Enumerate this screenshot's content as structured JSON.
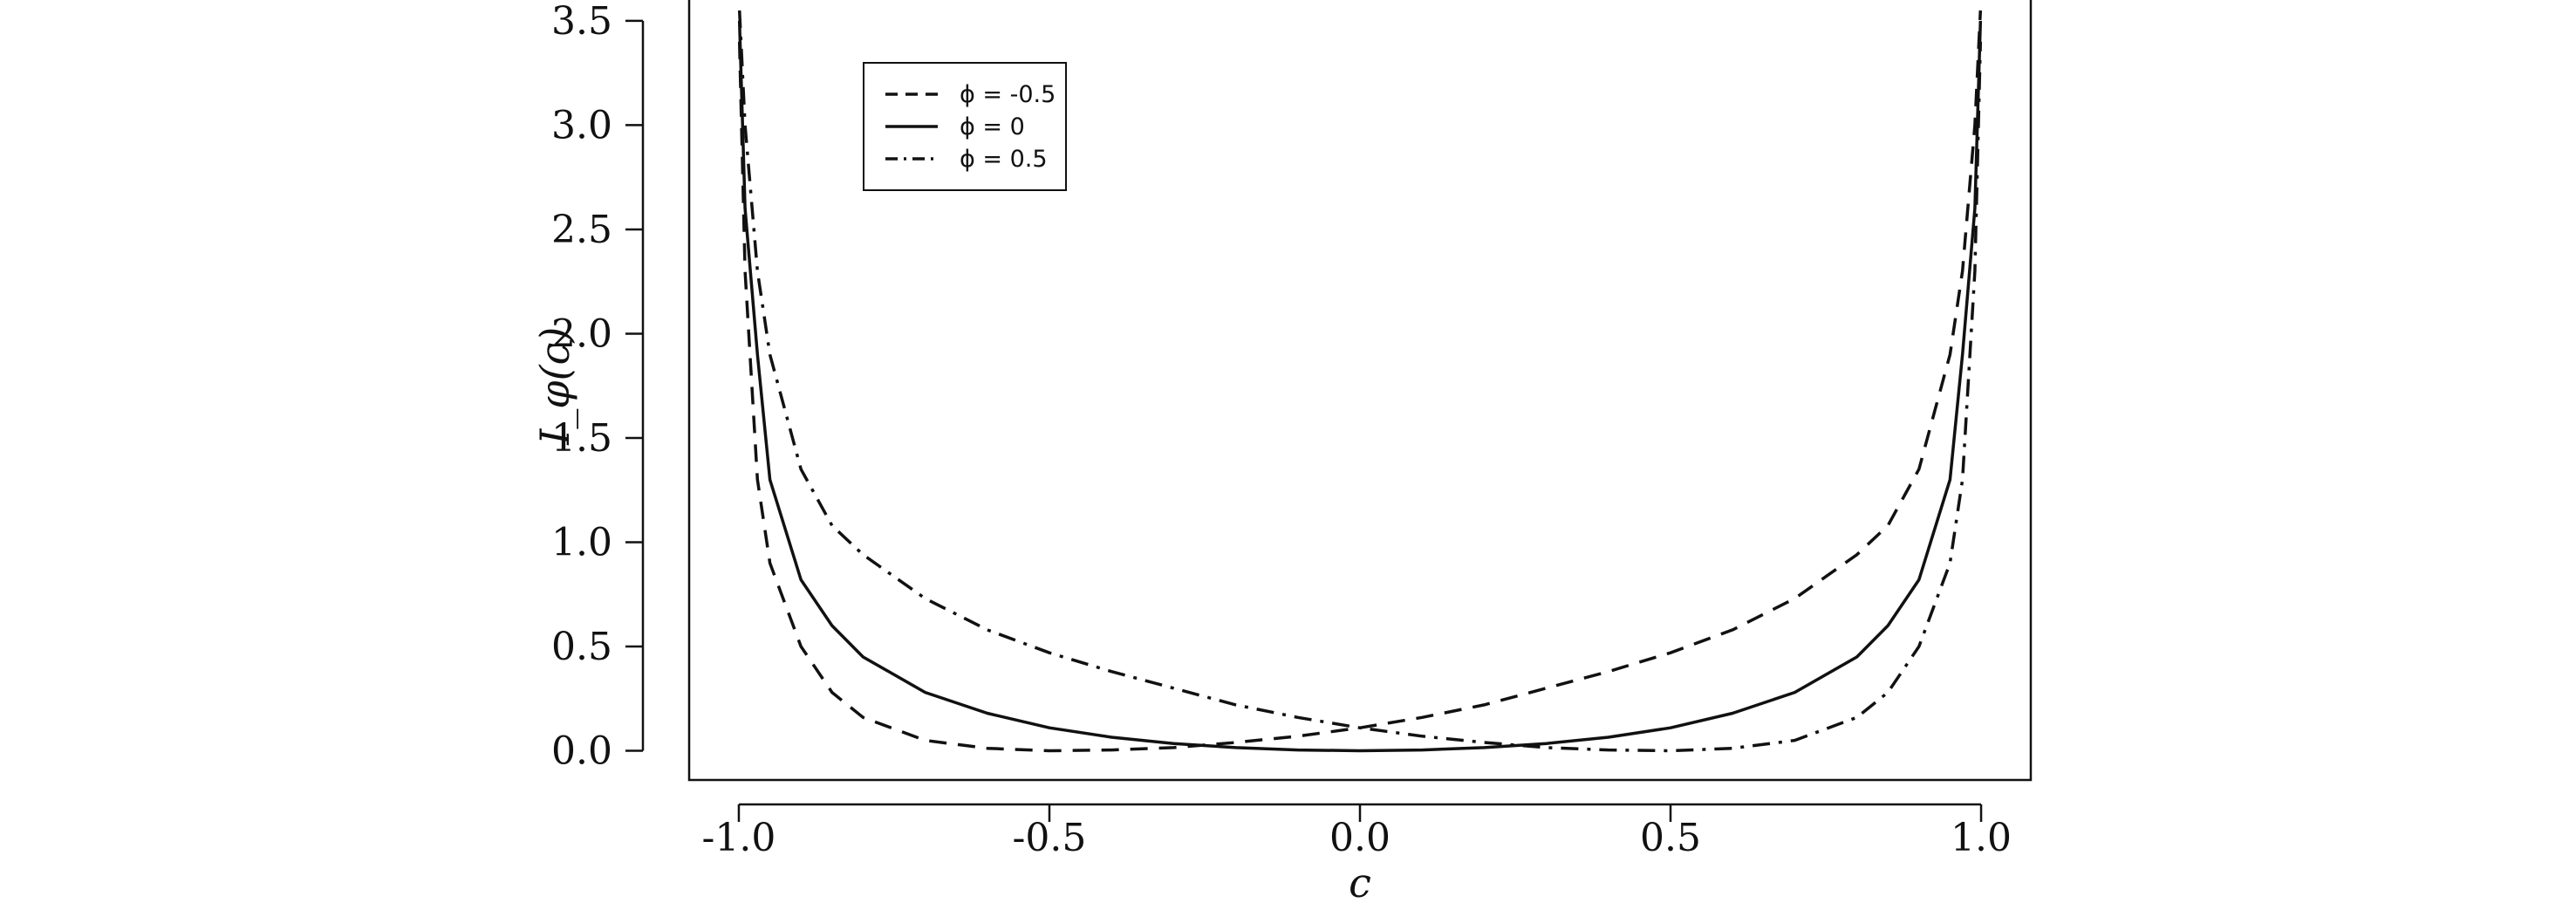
{
  "chart_data": {
    "type": "line",
    "title": "",
    "xlabel": "c",
    "ylabel": "I_φ(c)",
    "xlim": [
      -1.08,
      1.08
    ],
    "ylim": [
      -0.14,
      3.6
    ],
    "x_ticks": [
      -1.0,
      -0.5,
      0.0,
      0.5,
      1.0
    ],
    "x_tick_labels": [
      "-1.0",
      "-0.5",
      "0.0",
      "0.5",
      "1.0"
    ],
    "y_ticks": [
      0.0,
      0.5,
      1.0,
      1.5,
      2.0,
      2.5,
      3.0,
      3.5
    ],
    "y_tick_labels": [
      "0.0",
      "0.5",
      "1.0",
      "1.5",
      "2.0",
      "2.5",
      "3.0",
      "3.5"
    ],
    "grid": false,
    "legend_position": "top-left",
    "series": [
      {
        "name": "ϕ = -0.5",
        "line_style": "dashed",
        "x": [
          -0.999,
          -0.99,
          -0.97,
          -0.95,
          -0.9,
          -0.85,
          -0.8,
          -0.7,
          -0.6,
          -0.5,
          -0.4,
          -0.3,
          -0.2,
          -0.1,
          0.0,
          0.1,
          0.2,
          0.3,
          0.4,
          0.5,
          0.6,
          0.7,
          0.8,
          0.85,
          0.9,
          0.95,
          0.97,
          0.99,
          0.999
        ],
        "y": [
          3.4,
          2.3,
          1.3,
          0.9,
          0.5,
          0.28,
          0.16,
          0.05,
          0.012,
          0.0,
          0.004,
          0.015,
          0.04,
          0.07,
          0.11,
          0.16,
          0.22,
          0.3,
          0.38,
          0.47,
          0.58,
          0.73,
          0.94,
          1.08,
          1.35,
          1.9,
          2.3,
          3.0,
          3.55
        ]
      },
      {
        "name": "ϕ = 0",
        "line_style": "solid",
        "x": [
          -0.999,
          -0.99,
          -0.97,
          -0.95,
          -0.9,
          -0.85,
          -0.8,
          -0.7,
          -0.6,
          -0.5,
          -0.4,
          -0.3,
          -0.2,
          -0.1,
          0.0,
          0.1,
          0.2,
          0.3,
          0.4,
          0.5,
          0.6,
          0.7,
          0.8,
          0.85,
          0.9,
          0.95,
          0.97,
          0.99,
          0.999
        ],
        "y": [
          3.5,
          2.6,
          1.9,
          1.3,
          0.82,
          0.6,
          0.45,
          0.28,
          0.18,
          0.11,
          0.065,
          0.035,
          0.015,
          0.004,
          0.0,
          0.004,
          0.015,
          0.035,
          0.065,
          0.11,
          0.18,
          0.28,
          0.45,
          0.6,
          0.82,
          1.3,
          1.9,
          2.6,
          3.5
        ]
      },
      {
        "name": "ϕ = 0.5",
        "line_style": "dashdot",
        "x": [
          -0.999,
          -0.99,
          -0.97,
          -0.95,
          -0.9,
          -0.85,
          -0.8,
          -0.7,
          -0.6,
          -0.5,
          -0.4,
          -0.3,
          -0.2,
          -0.1,
          0.0,
          0.1,
          0.2,
          0.3,
          0.4,
          0.5,
          0.6,
          0.7,
          0.8,
          0.85,
          0.9,
          0.95,
          0.97,
          0.99,
          0.999
        ],
        "y": [
          3.55,
          3.0,
          2.3,
          1.9,
          1.35,
          1.08,
          0.94,
          0.73,
          0.58,
          0.47,
          0.38,
          0.3,
          0.22,
          0.16,
          0.11,
          0.07,
          0.04,
          0.015,
          0.004,
          0.0,
          0.012,
          0.05,
          0.16,
          0.28,
          0.5,
          0.9,
          1.3,
          2.3,
          3.4
        ]
      }
    ]
  }
}
